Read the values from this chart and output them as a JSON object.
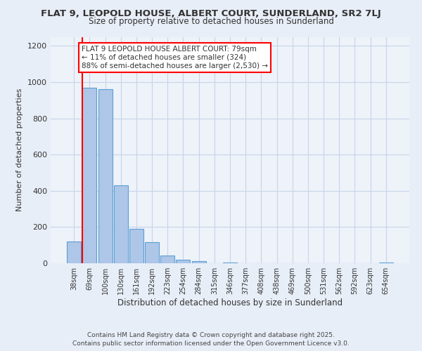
{
  "title": "FLAT 9, LEOPOLD HOUSE, ALBERT COURT, SUNDERLAND, SR2 7LJ",
  "subtitle": "Size of property relative to detached houses in Sunderland",
  "xlabel": "Distribution of detached houses by size in Sunderland",
  "ylabel": "Number of detached properties",
  "bar_color": "#aec6e8",
  "bar_edge_color": "#5a9fd4",
  "bg_color": "#e8eef7",
  "plot_bg_color": "#eef2f9",
  "grid_color": "#c8d4e8",
  "categories": [
    "38sqm",
    "69sqm",
    "100sqm",
    "130sqm",
    "161sqm",
    "192sqm",
    "223sqm",
    "254sqm",
    "284sqm",
    "315sqm",
    "346sqm",
    "377sqm",
    "408sqm",
    "438sqm",
    "469sqm",
    "500sqm",
    "531sqm",
    "562sqm",
    "592sqm",
    "623sqm",
    "654sqm"
  ],
  "values": [
    120,
    970,
    960,
    430,
    190,
    115,
    43,
    20,
    12,
    0,
    5,
    0,
    0,
    0,
    0,
    0,
    0,
    0,
    0,
    0,
    5
  ],
  "property_line_bin": 1,
  "annotation_title": "FLAT 9 LEOPOLD HOUSE ALBERT COURT: 79sqm",
  "annotation_line1": "← 11% of detached houses are smaller (324)",
  "annotation_line2": "88% of semi-detached houses are larger (2,530) →",
  "footnote1": "Contains HM Land Registry data © Crown copyright and database right 2025.",
  "footnote2": "Contains public sector information licensed under the Open Government Licence v3.0.",
  "ylim": [
    0,
    1250
  ],
  "yticks": [
    0,
    200,
    400,
    600,
    800,
    1000,
    1200
  ]
}
